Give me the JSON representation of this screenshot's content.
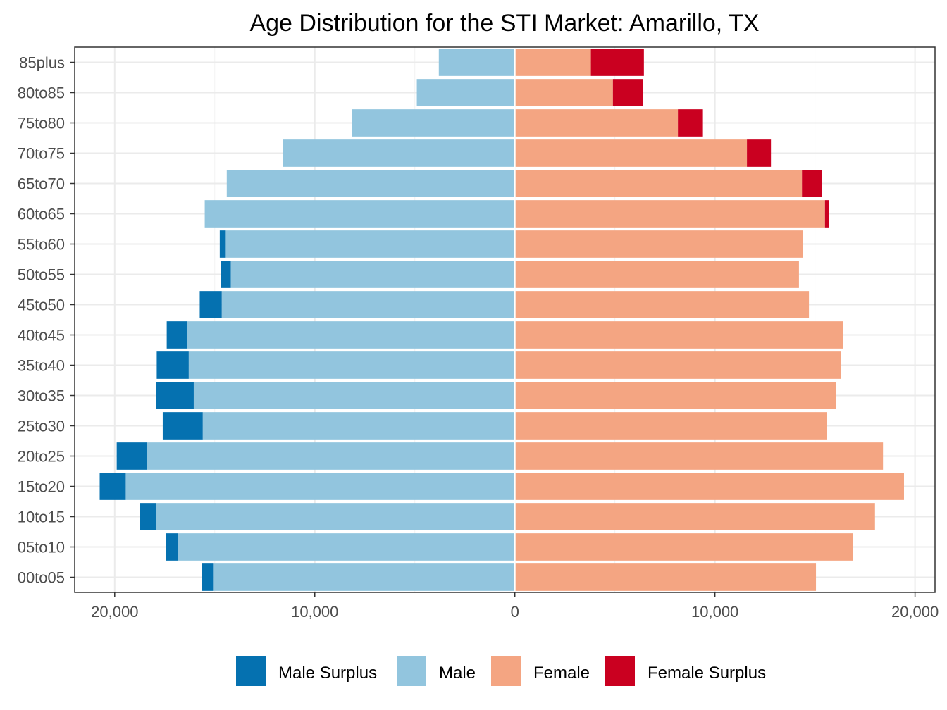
{
  "chart_data": {
    "type": "bar",
    "orientation": "horizontal",
    "title": "Age Distribution for the STI Market: Amarillo, TX",
    "xlabel": "",
    "ylabel": "",
    "xlim": [
      -22000,
      21000
    ],
    "x_ticks": [
      -20000,
      -10000,
      0,
      10000,
      20000
    ],
    "x_tick_labels": [
      "20,000",
      "10,000",
      "0",
      "10,000",
      "20,000"
    ],
    "categories": [
      "00to05",
      "05to10",
      "10to15",
      "15to20",
      "20to25",
      "25to30",
      "30to35",
      "35to40",
      "40to45",
      "45to50",
      "50to55",
      "55to60",
      "60to65",
      "65to70",
      "70to75",
      "75to80",
      "80to85",
      "85plus"
    ],
    "grid": true,
    "legend_position": "bottom",
    "colors": {
      "Male Surplus": "#0571b0",
      "Male": "#92c5de",
      "Female": "#f4a582",
      "Female Surplus": "#ca0020"
    },
    "series": [
      {
        "name": "Male Surplus",
        "side": "left",
        "stack_on": "Male",
        "values": [
          600,
          600,
          800,
          1300,
          1500,
          2000,
          1900,
          1600,
          1000,
          1100,
          500,
          300,
          0,
          0,
          0,
          0,
          0,
          0
        ]
      },
      {
        "name": "Male",
        "side": "left",
        "values": [
          15050,
          16850,
          17950,
          19450,
          18400,
          15600,
          16050,
          16300,
          16400,
          14650,
          14200,
          14450,
          15500,
          14400,
          11600,
          8150,
          4900,
          3800
        ]
      },
      {
        "name": "Female",
        "side": "right",
        "values": [
          15050,
          16900,
          18000,
          19450,
          18400,
          15600,
          16050,
          16300,
          16400,
          14700,
          14200,
          14400,
          15500,
          14350,
          11600,
          8150,
          4900,
          3800
        ]
      },
      {
        "name": "Female Surplus",
        "side": "right",
        "stack_on": "Female",
        "values": [
          0,
          0,
          0,
          0,
          0,
          0,
          0,
          0,
          0,
          0,
          0,
          0,
          200,
          1000,
          1200,
          1250,
          1500,
          2650
        ]
      }
    ]
  }
}
